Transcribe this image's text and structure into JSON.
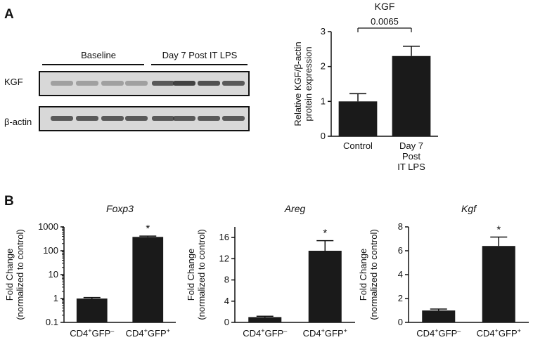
{
  "panel_a": {
    "letter": "A",
    "blot": {
      "group_baseline": "Baseline",
      "group_treated": "Day 7 Post IT LPS",
      "row_kgf": "KGF",
      "row_actin": "β-actin"
    },
    "chart_data": {
      "type": "bar",
      "title": "KGF",
      "ylabel_line1": "Relative KGF/β-actin",
      "ylabel_line2": "protein expression",
      "categories": [
        {
          "lines": [
            "Control"
          ]
        },
        {
          "lines": [
            "Day 7",
            "Post",
            "IT LPS"
          ]
        }
      ],
      "values": [
        1.0,
        2.3
      ],
      "errors": [
        0.22,
        0.28
      ],
      "ylim": [
        0,
        3
      ],
      "yticks": [
        0,
        1,
        2,
        3
      ],
      "annotation": "0.0065"
    }
  },
  "panel_b": {
    "letter": "B",
    "charts": [
      {
        "type": "bar",
        "title": "Foxp3",
        "scale": "log",
        "ylabel_line1": "Fold Change",
        "ylabel_line2": "(normalized to control)",
        "ylim": [
          0.1,
          1000
        ],
        "yticks": [
          0.1,
          1,
          10,
          100,
          1000
        ],
        "ytick_labels": [
          "0.1",
          "1",
          "10",
          "100",
          "1000"
        ],
        "categories": [
          {
            "base": "CD4",
            "sup1": "+",
            "mid": "GFP",
            "sup2": "–"
          },
          {
            "base": "CD4",
            "sup1": "+",
            "mid": "GFP",
            "sup2": "+"
          }
        ],
        "values": [
          1.0,
          380
        ],
        "errors": [
          0.1,
          30
        ],
        "significance": "*"
      },
      {
        "type": "bar",
        "title": "Areg",
        "scale": "linear",
        "ylabel_line1": "Fold Change",
        "ylabel_line2": "(normalized to control)",
        "ylim": [
          0,
          18
        ],
        "yticks": [
          0,
          4,
          8,
          12,
          16
        ],
        "ytick_labels": [
          "0",
          "4",
          "8",
          "12",
          "16"
        ],
        "categories": [
          {
            "base": "CD4",
            "sup1": "+",
            "mid": "GFP",
            "sup2": "–"
          },
          {
            "base": "CD4",
            "sup1": "+",
            "mid": "GFP",
            "sup2": "+"
          }
        ],
        "values": [
          1.0,
          13.5
        ],
        "errors": [
          0.15,
          1.9
        ],
        "significance": "*"
      },
      {
        "type": "bar",
        "title": "Kgf",
        "scale": "linear",
        "ylabel_line1": "Fold Change",
        "ylabel_line2": "(normalized to control)",
        "ylim": [
          0,
          8
        ],
        "yticks": [
          0,
          2,
          4,
          6,
          8
        ],
        "ytick_labels": [
          "0",
          "2",
          "4",
          "6",
          "8"
        ],
        "categories": [
          {
            "base": "CD4",
            "sup1": "+",
            "mid": "GFP",
            "sup2": "–"
          },
          {
            "base": "CD4",
            "sup1": "+",
            "mid": "GFP",
            "sup2": "+"
          }
        ],
        "values": [
          1.0,
          6.4
        ],
        "errors": [
          0.12,
          0.75
        ],
        "significance": "*"
      }
    ]
  },
  "colors": {
    "bar": "#1a1a1a",
    "axis": "#111111",
    "band": "#3a3a3a",
    "blot_bg": "#d8d8d8"
  }
}
